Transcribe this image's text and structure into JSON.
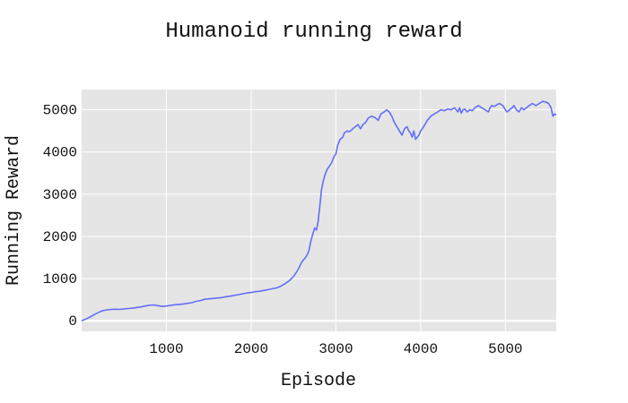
{
  "chart_data": {
    "type": "line",
    "title": "Humanoid running reward",
    "xlabel": "Episode",
    "ylabel": "Running Reward",
    "xlim": [
      0,
      5600
    ],
    "ylim": [
      -250,
      5480
    ],
    "xticks": [
      1000,
      2000,
      3000,
      4000,
      5000
    ],
    "yticks": [
      0,
      1000,
      2000,
      3000,
      4000,
      5000
    ],
    "grid": true,
    "legend": "none",
    "colors": {
      "line": "#636efa",
      "plot_bg": "#e5e5e5",
      "grid": "#ffffff"
    },
    "series": [
      {
        "x": [
          0,
          50,
          100,
          150,
          200,
          250,
          300,
          350,
          400,
          450,
          500,
          600,
          700,
          750,
          800,
          850,
          900,
          950,
          1000,
          1100,
          1200,
          1300,
          1350,
          1400,
          1450,
          1500,
          1600,
          1650,
          1700,
          1800,
          1850,
          1900,
          1950,
          2000,
          2050,
          2100,
          2150,
          2200,
          2250,
          2300,
          2350,
          2400,
          2450,
          2500,
          2550,
          2580,
          2600,
          2620,
          2650,
          2680,
          2700,
          2720,
          2750,
          2770,
          2790,
          2810,
          2830,
          2850,
          2870,
          2900,
          2920,
          2950,
          2980,
          3000,
          3020,
          3050,
          3080,
          3100,
          3130,
          3160,
          3200,
          3230,
          3260,
          3290,
          3320,
          3350,
          3380,
          3420,
          3460,
          3500,
          3530,
          3570,
          3600,
          3630,
          3660,
          3690,
          3720,
          3750,
          3780,
          3810,
          3840,
          3860,
          3880,
          3900,
          3920,
          3940,
          3960,
          3980,
          4000,
          4020,
          4050,
          4080,
          4120,
          4160,
          4200,
          4240,
          4280,
          4320,
          4360,
          4400,
          4420,
          4440,
          4460,
          4480,
          4500,
          4520,
          4550,
          4580,
          4610,
          4640,
          4680,
          4720,
          4760,
          4800,
          4820,
          4840,
          4870,
          4900,
          4930,
          4970,
          5000,
          5020,
          5050,
          5080,
          5100,
          5130,
          5160,
          5190,
          5220,
          5250,
          5280,
          5320,
          5360,
          5400,
          5440,
          5480,
          5510,
          5540,
          5560,
          5580,
          5600
        ],
        "y": [
          0,
          40,
          90,
          150,
          200,
          240,
          260,
          270,
          275,
          270,
          280,
          300,
          330,
          350,
          370,
          375,
          360,
          340,
          350,
          380,
          400,
          430,
          460,
          480,
          510,
          520,
          540,
          550,
          570,
          600,
          620,
          640,
          660,
          670,
          690,
          700,
          720,
          740,
          760,
          780,
          820,
          880,
          950,
          1050,
          1200,
          1320,
          1400,
          1450,
          1520,
          1650,
          1850,
          2000,
          2200,
          2150,
          2350,
          2700,
          3100,
          3300,
          3450,
          3600,
          3650,
          3750,
          3900,
          3950,
          4150,
          4300,
          4350,
          4450,
          4500,
          4480,
          4550,
          4600,
          4650,
          4550,
          4650,
          4700,
          4800,
          4850,
          4820,
          4750,
          4900,
          4950,
          5000,
          4950,
          4850,
          4700,
          4600,
          4500,
          4400,
          4550,
          4600,
          4500,
          4450,
          4350,
          4500,
          4300,
          4350,
          4400,
          4500,
          4550,
          4650,
          4750,
          4850,
          4900,
          4950,
          5000,
          4980,
          5020,
          5000,
          5050,
          5000,
          4950,
          5050,
          4920,
          5000,
          5020,
          4950,
          5000,
          4980,
          5050,
          5100,
          5050,
          5000,
          4950,
          5050,
          5100,
          5080,
          5120,
          5150,
          5100,
          5000,
          4950,
          5000,
          5050,
          5100,
          5000,
          4950,
          5050,
          5000,
          5050,
          5100,
          5150,
          5100,
          5150,
          5200,
          5180,
          5150,
          5050,
          4850,
          4900,
          4880
        ]
      }
    ]
  }
}
